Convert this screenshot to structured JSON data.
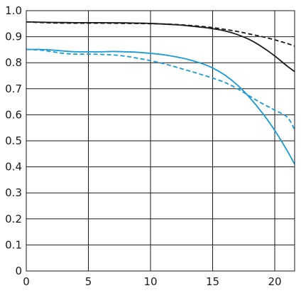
{
  "chart_data": {
    "type": "line",
    "title": "",
    "xlabel": "",
    "ylabel": "",
    "xlim": [
      0,
      21.6
    ],
    "ylim": [
      0,
      1.0
    ],
    "grid": true,
    "legend": "none",
    "x_ticks": [
      0,
      5,
      10,
      15,
      20
    ],
    "x_tick_labels": [
      "0",
      "5",
      "10",
      "15",
      "20"
    ],
    "y_ticks": [
      0,
      0.1,
      0.2,
      0.3,
      0.4,
      0.5,
      0.6,
      0.7,
      0.8,
      0.9,
      1.0
    ],
    "y_tick_labels": [
      "0",
      "0.1",
      "0.2",
      "0.3",
      "0.4",
      "0.5",
      "0.6",
      "0.7",
      "0.8",
      "0.9",
      "1.0"
    ],
    "series": [
      {
        "color": "#1a1a1a",
        "style": "solid",
        "x": [
          0,
          2,
          4,
          6,
          8,
          10,
          12,
          13,
          14,
          15,
          16,
          17,
          18,
          19,
          20,
          21,
          21.6
        ],
        "y": [
          0.957,
          0.955,
          0.954,
          0.954,
          0.953,
          0.951,
          0.946,
          0.942,
          0.937,
          0.931,
          0.922,
          0.908,
          0.888,
          0.86,
          0.826,
          0.787,
          0.766
        ]
      },
      {
        "color": "#1a1a1a",
        "style": "dashed",
        "x": [
          0,
          2,
          4,
          6,
          8,
          10,
          12,
          14,
          15,
          16,
          17,
          18,
          19,
          20,
          21,
          21.6
        ],
        "y": [
          0.957,
          0.953,
          0.952,
          0.952,
          0.951,
          0.95,
          0.947,
          0.94,
          0.935,
          0.928,
          0.92,
          0.91,
          0.9,
          0.888,
          0.874,
          0.864
        ]
      },
      {
        "color": "#1a9ad6",
        "style": "solid",
        "x": [
          0,
          1,
          2,
          3,
          4,
          5,
          6,
          7,
          8,
          9,
          10,
          11,
          12,
          13,
          14,
          15,
          16,
          17,
          18,
          19,
          20,
          21,
          21.6
        ],
        "y": [
          0.851,
          0.851,
          0.849,
          0.845,
          0.842,
          0.842,
          0.842,
          0.843,
          0.842,
          0.84,
          0.836,
          0.831,
          0.823,
          0.813,
          0.799,
          0.78,
          0.752,
          0.714,
          0.665,
          0.607,
          0.54,
          0.462,
          0.41
        ]
      },
      {
        "color": "#1a9ad6",
        "style": "dashed",
        "x": [
          0,
          1,
          2,
          3,
          4,
          5,
          6,
          7,
          8,
          9,
          10,
          11,
          12,
          13,
          14,
          15,
          16,
          17,
          18,
          19,
          20,
          21,
          21.6
        ],
        "y": [
          0.851,
          0.849,
          0.843,
          0.836,
          0.833,
          0.833,
          0.832,
          0.83,
          0.825,
          0.817,
          0.808,
          0.797,
          0.784,
          0.77,
          0.756,
          0.741,
          0.724,
          0.7,
          0.671,
          0.643,
          0.618,
          0.591,
          0.543
        ]
      }
    ]
  }
}
